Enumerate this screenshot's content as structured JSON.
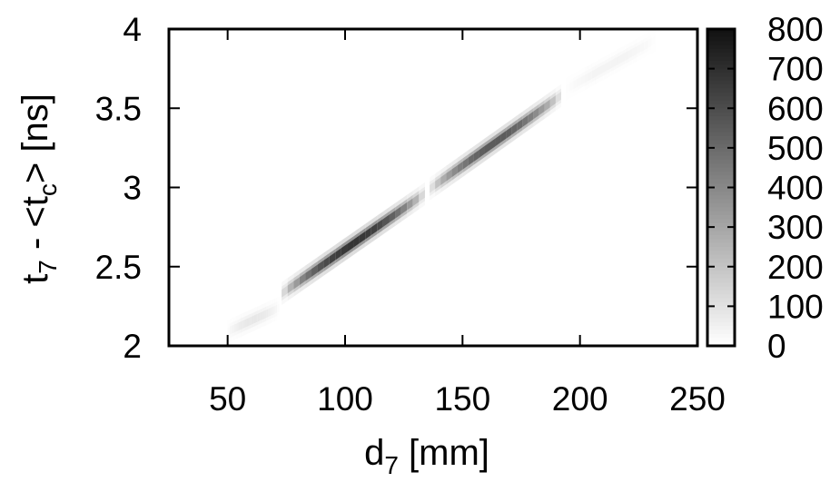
{
  "chart_data": {
    "type": "heatmap",
    "x_axis": {
      "label_main": "d",
      "label_sub": "7",
      "label_unit": " [mm]",
      "range": [
        25,
        250
      ],
      "ticks": [
        50,
        100,
        150,
        200,
        250
      ]
    },
    "y_axis": {
      "label_t": "t",
      "label_t_sub": "7",
      "label_mid": " - <t",
      "label_c_sub": "c",
      "label_tail": "> [ns]",
      "range": [
        2,
        4
      ],
      "ticks": [
        {
          "value": 2,
          "label": "2"
        },
        {
          "value": 2.5,
          "label": "2.5"
        },
        {
          "value": 3,
          "label": "3"
        },
        {
          "value": 3.5,
          "label": "3.5"
        },
        {
          "value": 4,
          "label": "4"
        }
      ]
    },
    "colorbar": {
      "range": [
        0,
        800
      ],
      "ticks": [
        0,
        100,
        200,
        300,
        400,
        500,
        600,
        700,
        800
      ],
      "colormap": "white-to-black",
      "color_low": "#ffffff",
      "color_high": "#111111"
    },
    "bands": [
      {
        "x_start": 50,
        "x_end": 72,
        "y_start": 2.09,
        "y_end": 2.24,
        "peak": 90
      },
      {
        "x_start": 73,
        "x_end": 134,
        "y_start": 2.33,
        "y_end": 2.96,
        "peak": 760
      },
      {
        "x_start": 136,
        "x_end": 192,
        "y_start": 2.99,
        "y_end": 3.58,
        "peak": 620
      },
      {
        "x_start": 194,
        "x_end": 232,
        "y_start": 3.62,
        "y_end": 3.93,
        "peak": 45
      }
    ],
    "band_half_width_ns": 0.045,
    "grid": false,
    "legend": "none"
  }
}
